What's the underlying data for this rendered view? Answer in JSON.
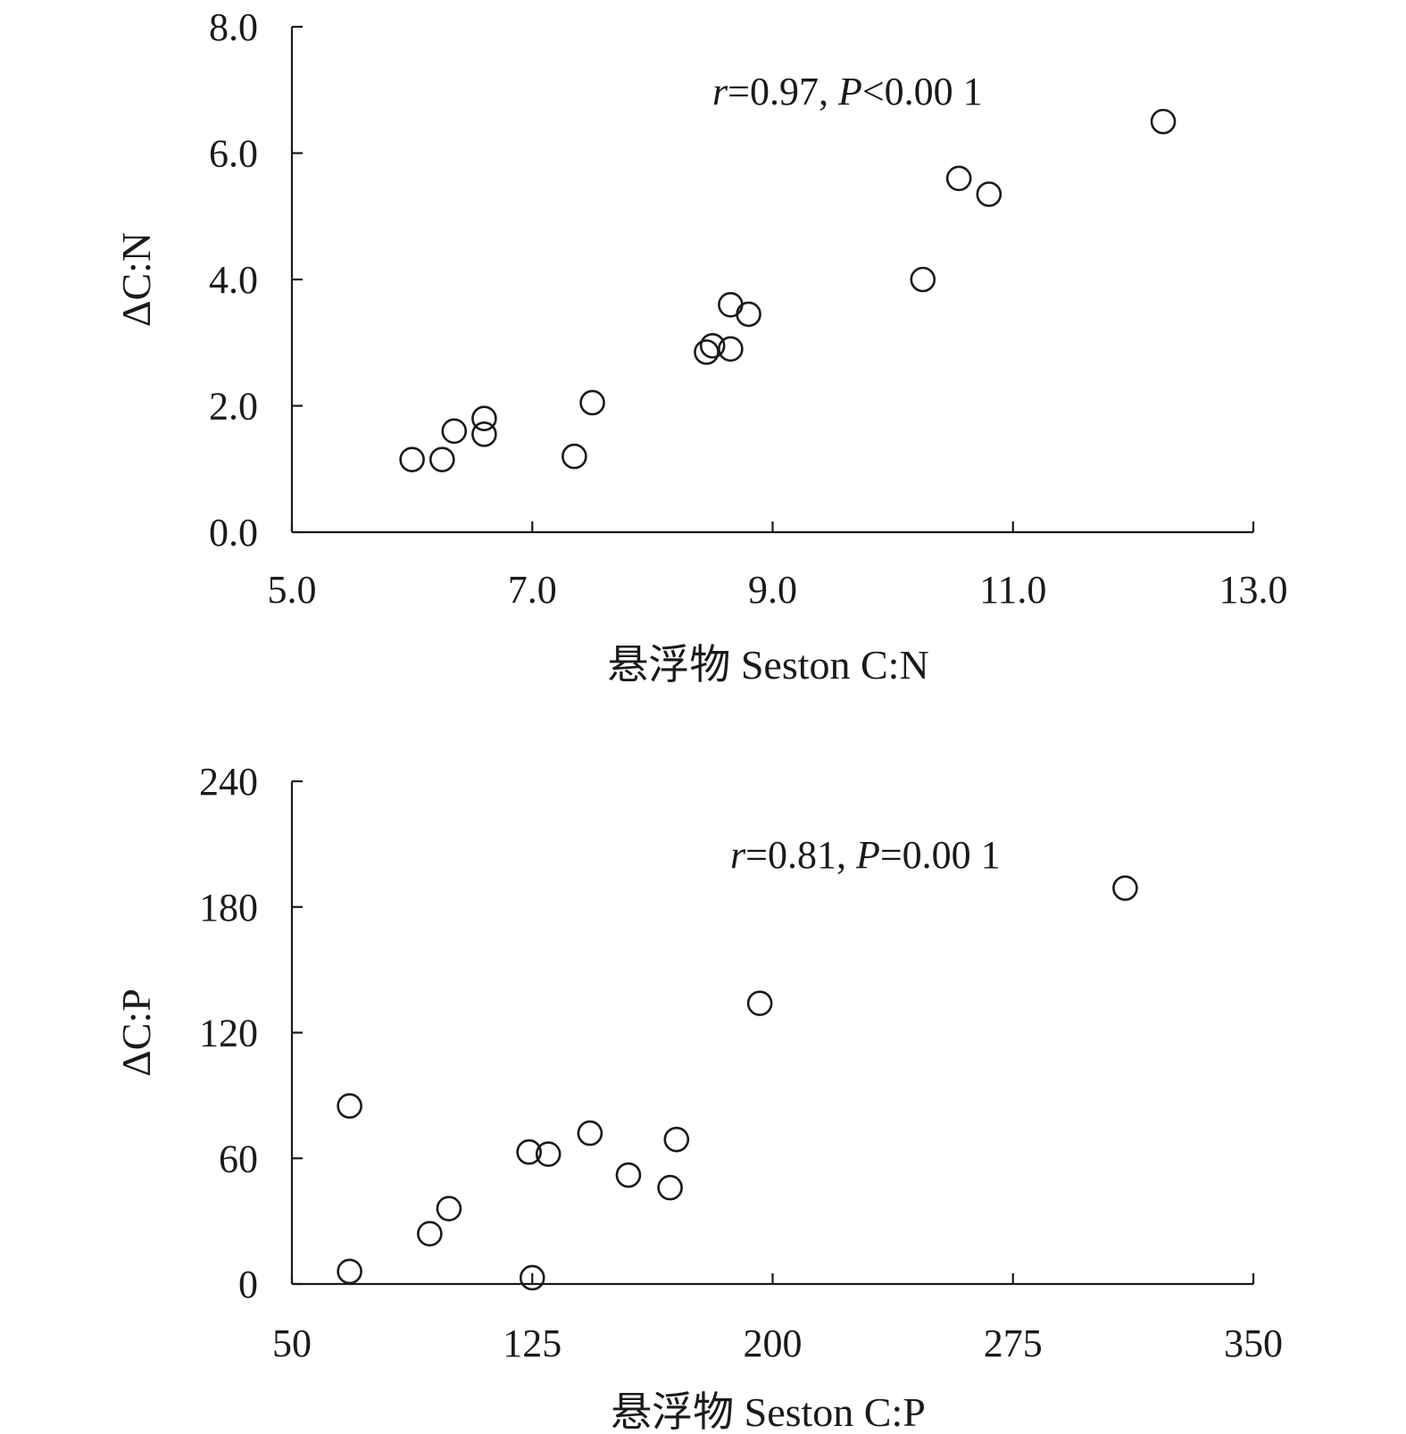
{
  "chart_data": [
    {
      "type": "scatter",
      "xlabel": "悬浮物 Seston C:N",
      "ylabel": "ΔC:N",
      "xlim": [
        5.0,
        13.0
      ],
      "ylim": [
        0.0,
        8.0
      ],
      "xticks": [
        "5.0",
        "7.0",
        "9.0",
        "11.0",
        "13.0"
      ],
      "yticks": [
        "0.0",
        "2.0",
        "4.0",
        "6.0",
        "8.0"
      ],
      "annotation": {
        "r_symbol": "r",
        "r_value": "=0.97, ",
        "p_symbol": "P",
        "p_value": "<0.00 1"
      },
      "marker_color": "#1a1a1a",
      "points": [
        {
          "x": 6.0,
          "y": 1.15
        },
        {
          "x": 6.25,
          "y": 1.15
        },
        {
          "x": 6.35,
          "y": 1.6
        },
        {
          "x": 6.6,
          "y": 1.8
        },
        {
          "x": 6.6,
          "y": 1.55
        },
        {
          "x": 7.35,
          "y": 1.2
        },
        {
          "x": 7.5,
          "y": 2.05
        },
        {
          "x": 8.45,
          "y": 2.85
        },
        {
          "x": 8.5,
          "y": 2.95
        },
        {
          "x": 8.65,
          "y": 2.9
        },
        {
          "x": 8.65,
          "y": 3.6
        },
        {
          "x": 8.8,
          "y": 3.45
        },
        {
          "x": 10.25,
          "y": 4.0
        },
        {
          "x": 10.55,
          "y": 5.6
        },
        {
          "x": 10.8,
          "y": 5.35
        },
        {
          "x": 12.25,
          "y": 6.5
        }
      ]
    },
    {
      "type": "scatter",
      "xlabel": "悬浮物 Seston C:P",
      "ylabel": "ΔC:P",
      "xlim": [
        50,
        350
      ],
      "ylim": [
        0,
        240
      ],
      "xticks": [
        "50",
        "125",
        "200",
        "275",
        "350"
      ],
      "yticks": [
        "0",
        "60",
        "120",
        "180",
        "240"
      ],
      "annotation": {
        "r_symbol": "r",
        "r_value": "=0.81, ",
        "p_symbol": "P",
        "p_value": "=0.00 1"
      },
      "marker_color": "#1a1a1a",
      "points": [
        {
          "x": 68,
          "y": 85
        },
        {
          "x": 68,
          "y": 6
        },
        {
          "x": 93,
          "y": 24
        },
        {
          "x": 99,
          "y": 36
        },
        {
          "x": 124,
          "y": 63
        },
        {
          "x": 125,
          "y": 3
        },
        {
          "x": 130,
          "y": 62
        },
        {
          "x": 143,
          "y": 72
        },
        {
          "x": 155,
          "y": 52
        },
        {
          "x": 168,
          "y": 46
        },
        {
          "x": 170,
          "y": 69
        },
        {
          "x": 196,
          "y": 134
        },
        {
          "x": 310,
          "y": 189
        }
      ]
    }
  ]
}
